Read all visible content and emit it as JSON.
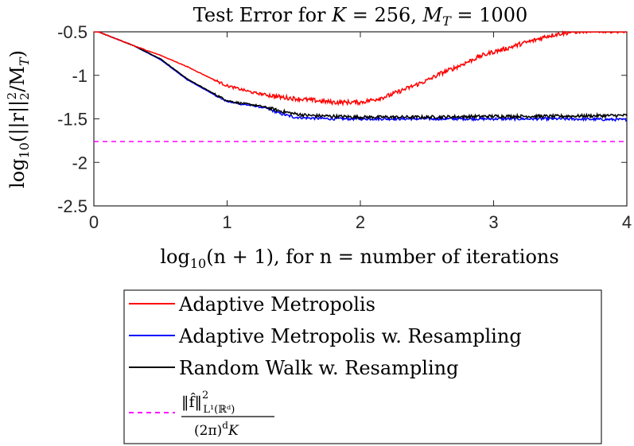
{
  "chart_data": {
    "type": "line",
    "title": "Test Error for K = 256, M_T = 1000",
    "title_parts": {
      "prefix": "Test Error for ",
      "k_label": "K",
      "k_value": " = 256, ",
      "m_label": "M",
      "m_sub": "T",
      "m_value": " = 1000"
    },
    "xlabel": "log10(n + 1), for n = number of iterations",
    "xlabel_parts": {
      "fn": "log",
      "fn_sub": "10",
      "arg": "(n + 1), for n = number of iterations"
    },
    "ylabel": "log10 (||r||2^2 / M_T)",
    "ylabel_parts": {
      "fn": "log",
      "fn_sub": "10",
      "body": "(||r||",
      "sub": "2",
      "sup": "2",
      "tail": "/M",
      "tail_sub": "T",
      "close": ")"
    },
    "xlim": [
      0,
      4
    ],
    "ylim": [
      -2.5,
      -0.5
    ],
    "xticks": [
      0,
      1,
      2,
      3,
      4
    ],
    "xtick_labels": [
      "0",
      "1",
      "2",
      "3",
      "4"
    ],
    "yticks": [
      -2.5,
      -2,
      -1.5,
      -1,
      -0.5
    ],
    "ytick_labels": [
      "-2.5",
      "-2",
      "-1.5",
      "-1",
      "-0.5"
    ],
    "grid": false,
    "legend_position": "below",
    "series": [
      {
        "name": "Adaptive Metropolis",
        "color": "#ff0000",
        "style": "solid",
        "x": [
          0,
          0.3,
          0.5,
          0.7,
          0.9,
          1.0,
          1.2,
          1.4,
          1.6,
          1.8,
          1.9,
          2.0,
          2.1,
          2.2,
          2.3,
          2.4,
          2.5,
          2.6,
          2.7,
          2.8,
          2.9,
          3.0,
          3.1,
          3.2,
          3.3,
          3.4,
          3.5,
          3.6,
          3.7,
          3.8,
          3.9,
          4.0
        ],
        "y": [
          -0.48,
          -0.66,
          -0.77,
          -0.9,
          -1.05,
          -1.12,
          -1.2,
          -1.25,
          -1.28,
          -1.31,
          -1.31,
          -1.31,
          -1.28,
          -1.24,
          -1.18,
          -1.12,
          -1.06,
          -0.98,
          -0.92,
          -0.85,
          -0.78,
          -0.73,
          -0.69,
          -0.64,
          -0.6,
          -0.55,
          -0.52,
          -0.5,
          -0.49,
          -0.49,
          -0.49,
          -0.49
        ],
        "noise": 0.025
      },
      {
        "name": "Adaptive Metropolis w. Resampling",
        "color": "#0000ff",
        "style": "solid",
        "x": [
          0,
          0.3,
          0.5,
          0.7,
          0.9,
          1.0,
          1.1,
          1.2,
          1.3,
          1.4,
          1.5,
          1.6,
          1.8,
          2.0,
          2.5,
          3.0,
          3.5,
          4.0
        ],
        "y": [
          -0.48,
          -0.66,
          -0.82,
          -1.05,
          -1.22,
          -1.3,
          -1.33,
          -1.35,
          -1.38,
          -1.44,
          -1.48,
          -1.49,
          -1.5,
          -1.5,
          -1.5,
          -1.5,
          -1.5,
          -1.51
        ],
        "noise": 0.015
      },
      {
        "name": "Random Walk w. Resampling",
        "color": "#000000",
        "style": "solid",
        "x": [
          0,
          0.3,
          0.5,
          0.7,
          0.9,
          1.0,
          1.1,
          1.2,
          1.3,
          1.4,
          1.5,
          1.6,
          1.8,
          2.0,
          2.5,
          3.0,
          3.5,
          4.0
        ],
        "y": [
          -0.48,
          -0.66,
          -0.81,
          -1.04,
          -1.21,
          -1.29,
          -1.32,
          -1.34,
          -1.37,
          -1.41,
          -1.44,
          -1.46,
          -1.47,
          -1.48,
          -1.48,
          -1.47,
          -1.47,
          -1.46
        ],
        "noise": 0.018
      },
      {
        "name": "‖f̂‖²_{L¹(ℝᵈ)} / ((2π)ᵈ K)",
        "color": "#ff00ff",
        "style": "dashed",
        "x": [
          0,
          4
        ],
        "y": [
          -1.76,
          -1.76
        ],
        "noise": 0
      }
    ],
    "legend": [
      "Adaptive Metropolis",
      "Adaptive Metropolis w. Resampling",
      "Random Walk w. Resampling"
    ],
    "legend_formula": {
      "num_norm": "‖f̂‖",
      "num_sup": "2",
      "num_sub": "L¹(ℝᵈ)",
      "den": "(2π)",
      "den_sup": "d",
      "den_tail": "K"
    }
  }
}
